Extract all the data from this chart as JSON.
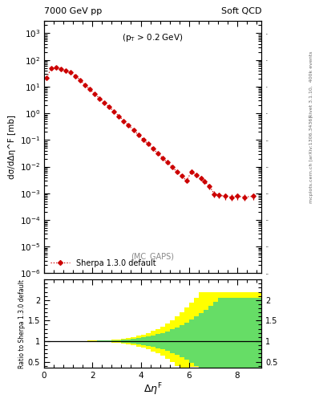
{
  "title_left": "7000 GeV pp",
  "title_right": "Soft QCD",
  "annotation": "(p_{T} > 0.2 GeV)",
  "watermark": "(MC_GAPS)",
  "ylabel_main": "dσ/dΔη^F [mb]",
  "ylabel_ratio": "Ratio to Sherpa 1.3.0 default",
  "legend_label": "Sherpa 1.3.0 default",
  "right_label1": "Rivet 3.1.10,  400k events",
  "right_label2": "mcplots.cern.ch [arXiv:1306.3436]",
  "line_color": "#cc0000",
  "main_x": [
    0.1,
    0.3,
    0.5,
    0.7,
    0.9,
    1.1,
    1.3,
    1.5,
    1.7,
    1.9,
    2.1,
    2.3,
    2.5,
    2.7,
    2.9,
    3.1,
    3.3,
    3.5,
    3.7,
    3.9,
    4.1,
    4.3,
    4.5,
    4.7,
    4.9,
    5.1,
    5.3,
    5.5,
    5.7,
    5.9,
    6.1,
    6.3,
    6.5,
    6.65,
    6.85,
    7.05,
    7.25,
    7.5,
    7.75,
    8.0,
    8.3,
    8.65
  ],
  "main_y": [
    22.0,
    48.0,
    52.0,
    47.0,
    41.0,
    34.0,
    25.0,
    17.5,
    11.5,
    7.8,
    5.3,
    3.6,
    2.5,
    1.7,
    1.15,
    0.78,
    0.52,
    0.35,
    0.235,
    0.158,
    0.105,
    0.071,
    0.048,
    0.032,
    0.021,
    0.0143,
    0.0096,
    0.0065,
    0.0044,
    0.003,
    0.0065,
    0.0048,
    0.0037,
    0.0028,
    0.0018,
    0.00095,
    0.00085,
    0.00078,
    0.00072,
    0.00078,
    0.00072,
    0.00078
  ],
  "main_yerr": [
    1.5,
    2.5,
    2.5,
    2.2,
    2.0,
    1.7,
    1.2,
    0.9,
    0.6,
    0.4,
    0.27,
    0.19,
    0.13,
    0.09,
    0.06,
    0.04,
    0.027,
    0.018,
    0.012,
    0.008,
    0.006,
    0.004,
    0.0027,
    0.0018,
    0.0012,
    0.0008,
    0.00055,
    0.00037,
    0.00025,
    0.00018,
    0.0012,
    0.0009,
    0.0007,
    0.0006,
    0.0004,
    0.00025,
    0.00022,
    0.0002,
    0.00018,
    0.0002,
    0.00018,
    0.0002
  ],
  "ratio_bins": [
    0.0,
    0.2,
    0.4,
    0.6,
    0.8,
    1.0,
    1.2,
    1.4,
    1.6,
    1.8,
    2.0,
    2.2,
    2.4,
    2.6,
    2.8,
    3.0,
    3.2,
    3.4,
    3.6,
    3.8,
    4.0,
    4.2,
    4.4,
    4.6,
    4.8,
    5.0,
    5.2,
    5.4,
    5.6,
    5.8,
    6.0,
    6.2,
    6.4,
    6.6,
    6.8,
    7.0,
    7.2,
    7.4,
    7.6,
    7.8,
    8.0,
    8.2,
    8.4,
    8.6,
    9.0
  ],
  "ratio_yellow_upper": [
    1.0005,
    1.001,
    1.001,
    1.002,
    1.002,
    1.003,
    1.004,
    1.005,
    1.007,
    1.009,
    1.012,
    1.016,
    1.021,
    1.028,
    1.036,
    1.047,
    1.061,
    1.079,
    1.101,
    1.128,
    1.161,
    1.2,
    1.245,
    1.298,
    1.36,
    1.43,
    1.51,
    1.6,
    1.7,
    1.81,
    1.93,
    2.06,
    2.2,
    2.2,
    2.2,
    2.2,
    2.2,
    2.2,
    2.2,
    2.2,
    2.2,
    2.2,
    2.2,
    2.2
  ],
  "ratio_yellow_lower": [
    0.9995,
    0.999,
    0.999,
    0.998,
    0.998,
    0.997,
    0.996,
    0.995,
    0.993,
    0.991,
    0.988,
    0.984,
    0.979,
    0.972,
    0.964,
    0.953,
    0.939,
    0.921,
    0.899,
    0.872,
    0.839,
    0.8,
    0.755,
    0.702,
    0.64,
    0.57,
    0.49,
    0.4,
    0.3,
    0.22,
    0.38,
    0.38,
    0.38,
    0.38,
    0.38,
    0.38,
    0.38,
    0.38,
    0.38,
    0.38,
    0.38,
    0.38,
    0.38,
    0.38
  ],
  "ratio_green_upper": [
    1.0002,
    1.0005,
    1.0005,
    1.001,
    1.001,
    1.0015,
    1.002,
    1.003,
    1.004,
    1.005,
    1.007,
    1.009,
    1.012,
    1.016,
    1.021,
    1.027,
    1.035,
    1.045,
    1.057,
    1.072,
    1.09,
    1.112,
    1.138,
    1.168,
    1.202,
    1.242,
    1.287,
    1.338,
    1.395,
    1.458,
    1.528,
    1.6,
    1.68,
    1.77,
    1.86,
    1.96,
    2.05,
    2.05,
    2.05,
    2.05,
    2.05,
    2.05,
    2.05,
    2.05
  ],
  "ratio_green_lower": [
    0.9998,
    0.9995,
    0.9995,
    0.999,
    0.999,
    0.9985,
    0.998,
    0.997,
    0.996,
    0.995,
    0.993,
    0.991,
    0.988,
    0.984,
    0.979,
    0.973,
    0.965,
    0.955,
    0.943,
    0.928,
    0.91,
    0.888,
    0.862,
    0.832,
    0.798,
    0.758,
    0.713,
    0.662,
    0.605,
    0.542,
    0.472,
    0.4,
    0.35,
    0.35,
    0.35,
    0.35,
    0.35,
    0.35,
    0.35,
    0.35,
    0.35,
    0.35,
    0.35,
    0.35
  ],
  "ylim_main": [
    1e-06,
    3000.0
  ],
  "ylim_ratio": [
    0.35,
    2.5
  ],
  "xlim": [
    0,
    9.0
  ],
  "xticks": [
    0,
    2,
    4,
    6,
    8
  ],
  "background_color": "#ffffff"
}
